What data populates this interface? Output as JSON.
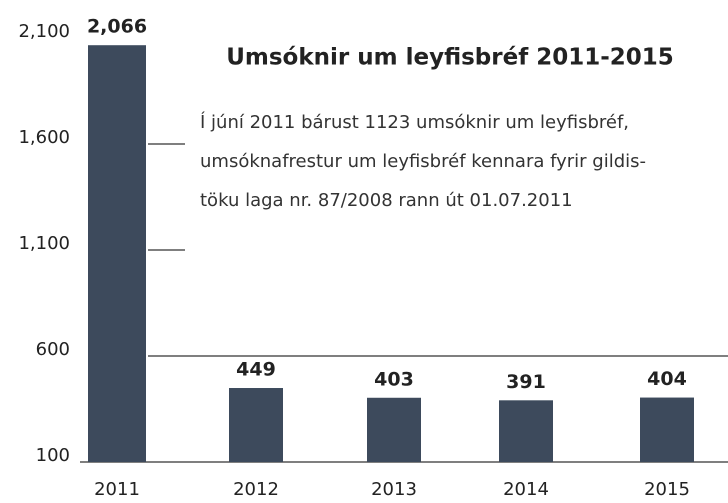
{
  "chart_data": {
    "type": "bar",
    "title": "Umsóknir um leyfisbréf 2011-2015",
    "annotation": [
      "Í júní 2011 bárust 1123 umsóknir um leyfisbréf,",
      "umsóknafrestur um leyfisbréf kennara fyrir gildis-",
      "töku laga nr. 87/2008 rann út 01.07.2011"
    ],
    "categories": [
      "2011",
      "2012",
      "2013",
      "2014",
      "2015"
    ],
    "values": [
      2066,
      449,
      403,
      391,
      404
    ],
    "value_labels": [
      "2,066",
      "449",
      "403",
      "391",
      "404"
    ],
    "color": "#3d4a5c",
    "ylim": [
      100,
      2100
    ],
    "yticks": [
      100,
      600,
      {
        "value": 1100,
        "label": "1,100"
      },
      {
        "value": 1600,
        "label": "1,600"
      },
      {
        "value": 2100,
        "label": "2,100"
      }
    ],
    "grid": true
  }
}
